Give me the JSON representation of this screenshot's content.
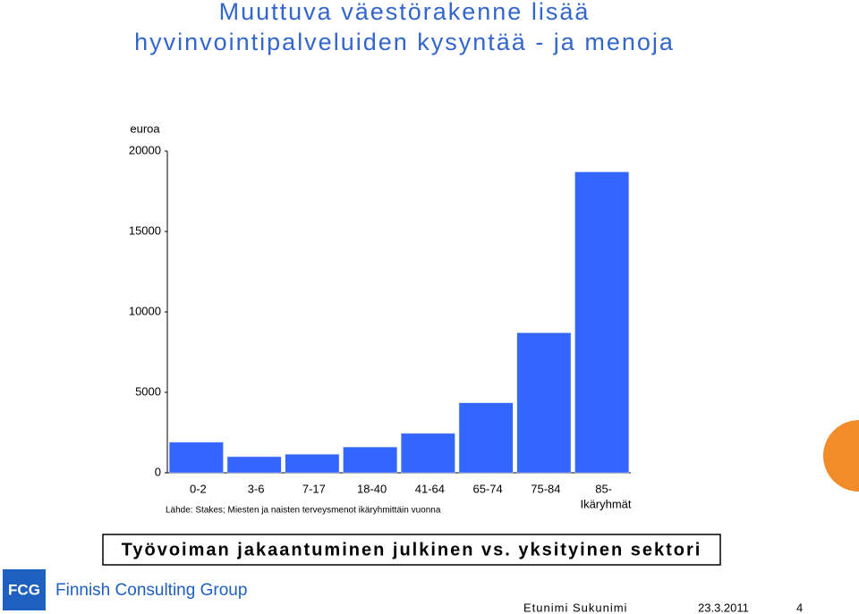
{
  "title": "Muuttuva väestörakenne lisää hyvinvointipalveluiden kysyntää - ja menoja",
  "chart_data": {
    "type": "bar",
    "y_label": "euroa",
    "x_label": "Ikäryhmät",
    "source": "Lähde: Stakes; Miesten ja naisten terveysmenot ikäryhmittäin vuonna",
    "categories": [
      "0-2",
      "3-6",
      "7-17",
      "18-40",
      "41-64",
      "65-74",
      "75-84",
      "85-"
    ],
    "values": [
      1900,
      1000,
      1150,
      1600,
      2450,
      4350,
      8700,
      18700
    ],
    "color": "#3366ff",
    "ylim": [
      0,
      20000
    ],
    "yticks": [
      0,
      5000,
      10000,
      15000,
      20000
    ],
    "grid": false
  },
  "subtitle_box": "Työvoiman jakaantuminen julkinen vs. yksityinen sektori",
  "footer": {
    "logo": "FCG",
    "company": "Finnish Consulting Group",
    "author": "Etunimi Sukunimi",
    "date": "23.3.2011",
    "page": "4"
  }
}
